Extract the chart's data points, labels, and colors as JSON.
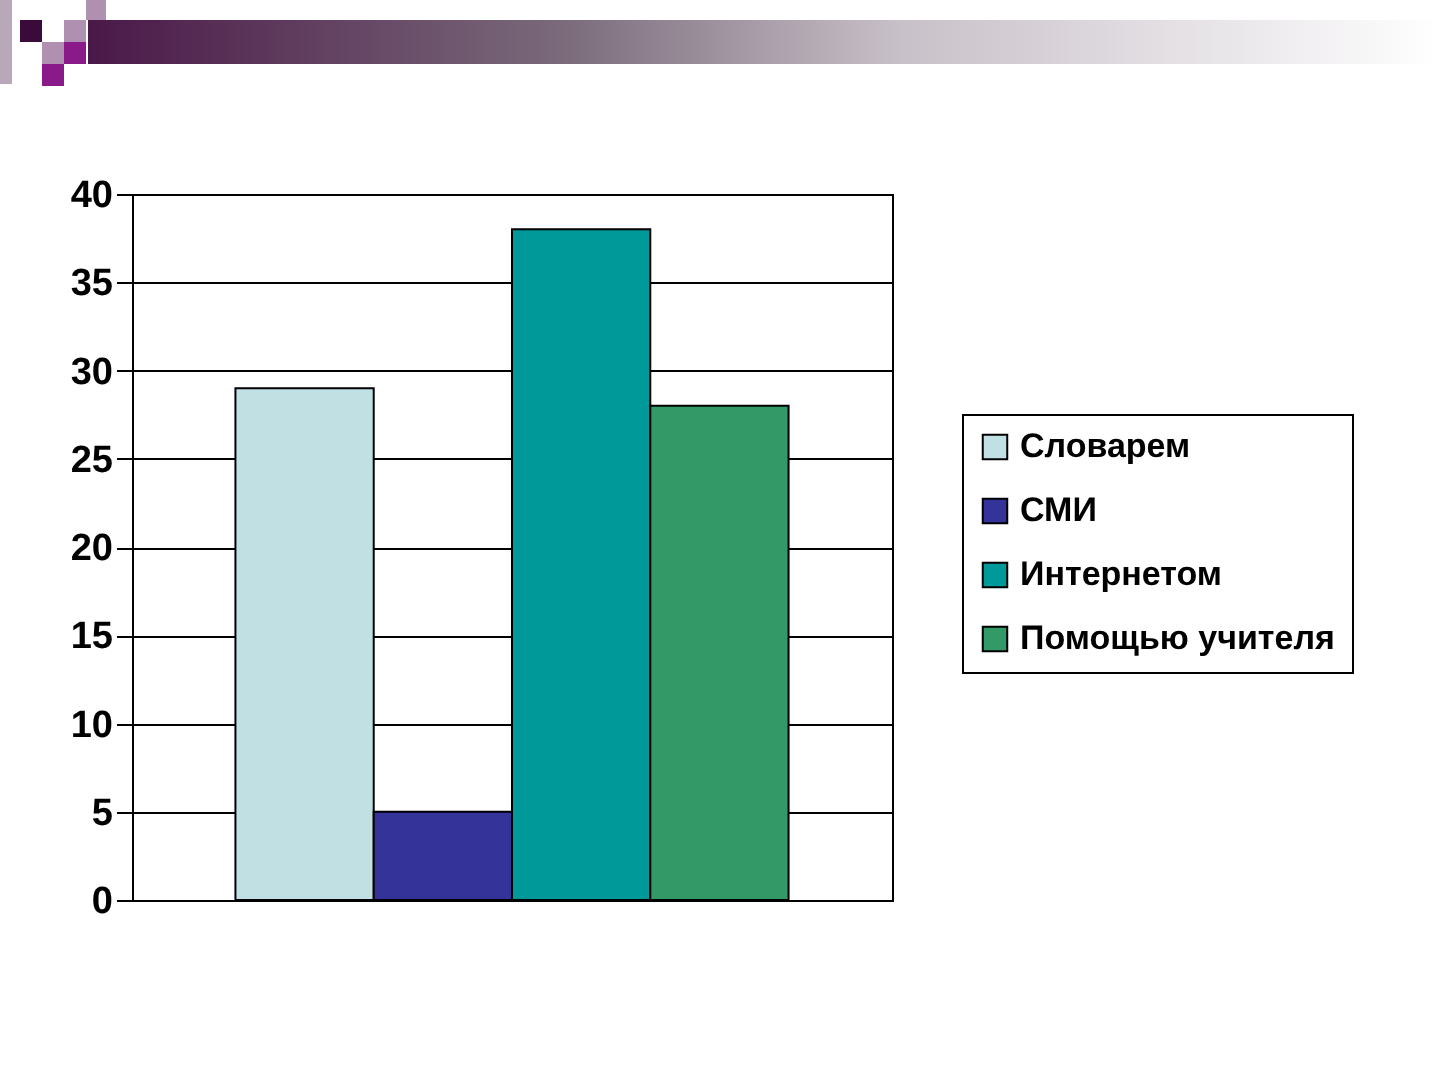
{
  "chart_data": {
    "type": "bar",
    "categories": [
      null
    ],
    "series": [
      {
        "name": "Словарем",
        "color": "#c0e0e4",
        "values": [
          29
        ]
      },
      {
        "name": "СМИ",
        "color": "#333399",
        "values": [
          5
        ]
      },
      {
        "name": "Интернетом",
        "color": "#009999",
        "values": [
          38
        ]
      },
      {
        "name": "Помощью учителя",
        "color": "#339966",
        "values": [
          28
        ]
      }
    ],
    "ylim": [
      0,
      40
    ],
    "yticks": [
      0,
      5,
      10,
      15,
      20,
      25,
      30,
      35,
      40
    ],
    "grid": "y",
    "legend": "right"
  }
}
